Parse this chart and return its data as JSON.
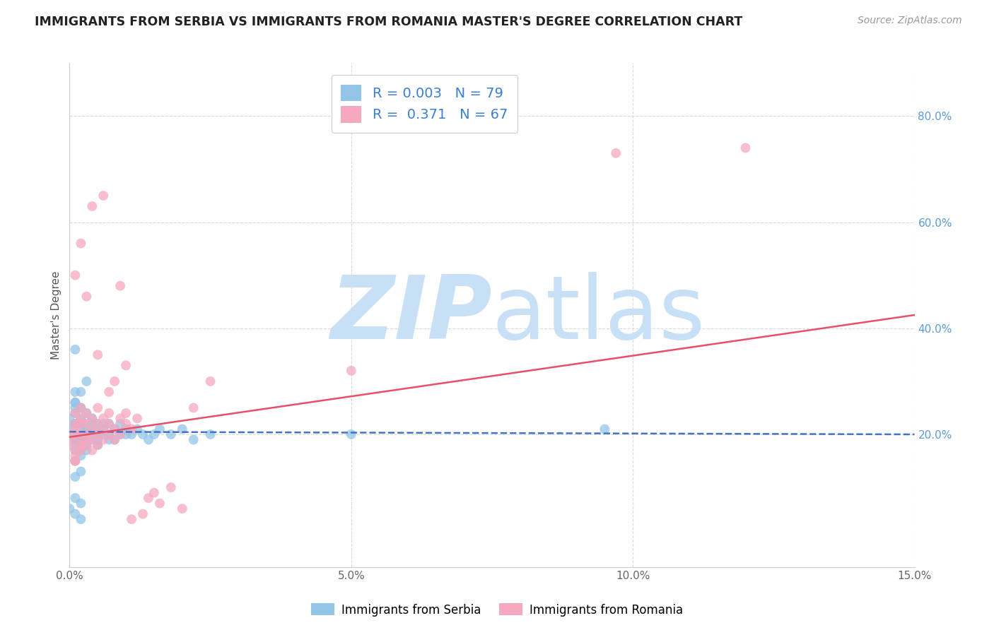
{
  "title": "IMMIGRANTS FROM SERBIA VS IMMIGRANTS FROM ROMANIA MASTER'S DEGREE CORRELATION CHART",
  "source": "Source: ZipAtlas.com",
  "ylabel": "Master's Degree",
  "xlim": [
    0.0,
    0.15
  ],
  "ylim": [
    -0.05,
    0.9
  ],
  "xticks": [
    0.0,
    0.05,
    0.1,
    0.15
  ],
  "xticklabels": [
    "0.0%",
    "5.0%",
    "10.0%",
    "15.0%"
  ],
  "yticks_right": [
    0.2,
    0.4,
    0.6,
    0.8
  ],
  "ytick_right_labels": [
    "20.0%",
    "40.0%",
    "60.0%",
    "80.0%"
  ],
  "serbia_color": "#92C5E8",
  "romania_color": "#F5A8BE",
  "serbia_R": 0.003,
  "serbia_N": 79,
  "romania_R": 0.371,
  "romania_N": 67,
  "serbia_trend_color": "#4472C4",
  "romania_trend_color": "#E8506A",
  "serbia_trend_x": [
    0.0,
    0.15
  ],
  "serbia_trend_y": [
    0.205,
    0.2
  ],
  "romania_trend_x": [
    0.0,
    0.15
  ],
  "romania_trend_y": [
    0.195,
    0.425
  ],
  "watermark_color": "#C8E0F5",
  "background_color": "#FFFFFF",
  "grid_color": "#DADADA",
  "title_color": "#222222",
  "legend_label_serbia": "Immigrants from Serbia",
  "legend_label_romania": "Immigrants from Romania",
  "serbia_x": [
    0.0,
    0.0,
    0.001,
    0.001,
    0.001,
    0.001,
    0.001,
    0.001,
    0.001,
    0.001,
    0.001,
    0.001,
    0.002,
    0.002,
    0.002,
    0.002,
    0.002,
    0.002,
    0.002,
    0.002,
    0.002,
    0.003,
    0.003,
    0.003,
    0.003,
    0.003,
    0.003,
    0.003,
    0.004,
    0.004,
    0.004,
    0.004,
    0.004,
    0.005,
    0.005,
    0.005,
    0.005,
    0.005,
    0.006,
    0.006,
    0.006,
    0.007,
    0.007,
    0.007,
    0.008,
    0.008,
    0.009,
    0.009,
    0.01,
    0.01,
    0.011,
    0.012,
    0.013,
    0.014,
    0.015,
    0.016,
    0.018,
    0.02,
    0.022,
    0.025,
    0.001,
    0.002,
    0.002,
    0.001,
    0.0,
    0.001,
    0.002,
    0.001,
    0.003,
    0.002,
    0.001,
    0.002,
    0.001,
    0.05,
    0.095,
    0.001,
    0.002,
    0.001,
    0.002
  ],
  "serbia_y": [
    0.21,
    0.23,
    0.19,
    0.22,
    0.2,
    0.25,
    0.17,
    0.18,
    0.24,
    0.26,
    0.28,
    0.15,
    0.2,
    0.21,
    0.19,
    0.23,
    0.22,
    0.17,
    0.16,
    0.18,
    0.25,
    0.2,
    0.19,
    0.22,
    0.21,
    0.24,
    0.18,
    0.17,
    0.22,
    0.2,
    0.23,
    0.19,
    0.21,
    0.2,
    0.22,
    0.19,
    0.21,
    0.18,
    0.2,
    0.22,
    0.21,
    0.19,
    0.2,
    0.22,
    0.21,
    0.19,
    0.2,
    0.22,
    0.2,
    0.21,
    0.2,
    0.21,
    0.2,
    0.19,
    0.2,
    0.21,
    0.2,
    0.21,
    0.19,
    0.2,
    0.12,
    0.13,
    0.07,
    0.08,
    0.06,
    0.05,
    0.04,
    0.36,
    0.3,
    0.28,
    0.26,
    0.25,
    0.22,
    0.2,
    0.21,
    0.19,
    0.18,
    0.2,
    0.19
  ],
  "romania_x": [
    0.0,
    0.0,
    0.001,
    0.001,
    0.001,
    0.001,
    0.001,
    0.001,
    0.001,
    0.002,
    0.002,
    0.002,
    0.002,
    0.002,
    0.002,
    0.003,
    0.003,
    0.003,
    0.003,
    0.003,
    0.004,
    0.004,
    0.004,
    0.004,
    0.005,
    0.005,
    0.005,
    0.005,
    0.006,
    0.006,
    0.006,
    0.007,
    0.007,
    0.007,
    0.008,
    0.008,
    0.009,
    0.009,
    0.01,
    0.01,
    0.011,
    0.012,
    0.013,
    0.014,
    0.015,
    0.016,
    0.018,
    0.02,
    0.022,
    0.025,
    0.001,
    0.003,
    0.005,
    0.007,
    0.009,
    0.002,
    0.004,
    0.006,
    0.008,
    0.05,
    0.12,
    0.01,
    0.011,
    0.001,
    0.002,
    0.001,
    0.097
  ],
  "romania_y": [
    0.2,
    0.18,
    0.22,
    0.17,
    0.24,
    0.19,
    0.15,
    0.21,
    0.16,
    0.23,
    0.2,
    0.18,
    0.25,
    0.17,
    0.22,
    0.2,
    0.19,
    0.24,
    0.18,
    0.22,
    0.21,
    0.19,
    0.23,
    0.17,
    0.2,
    0.22,
    0.25,
    0.18,
    0.21,
    0.23,
    0.19,
    0.24,
    0.2,
    0.22,
    0.21,
    0.19,
    0.2,
    0.23,
    0.22,
    0.24,
    0.21,
    0.23,
    0.05,
    0.08,
    0.09,
    0.07,
    0.1,
    0.06,
    0.25,
    0.3,
    0.5,
    0.46,
    0.35,
    0.28,
    0.48,
    0.56,
    0.63,
    0.65,
    0.3,
    0.32,
    0.74,
    0.33,
    0.04,
    0.2,
    0.18,
    0.15,
    0.73
  ]
}
